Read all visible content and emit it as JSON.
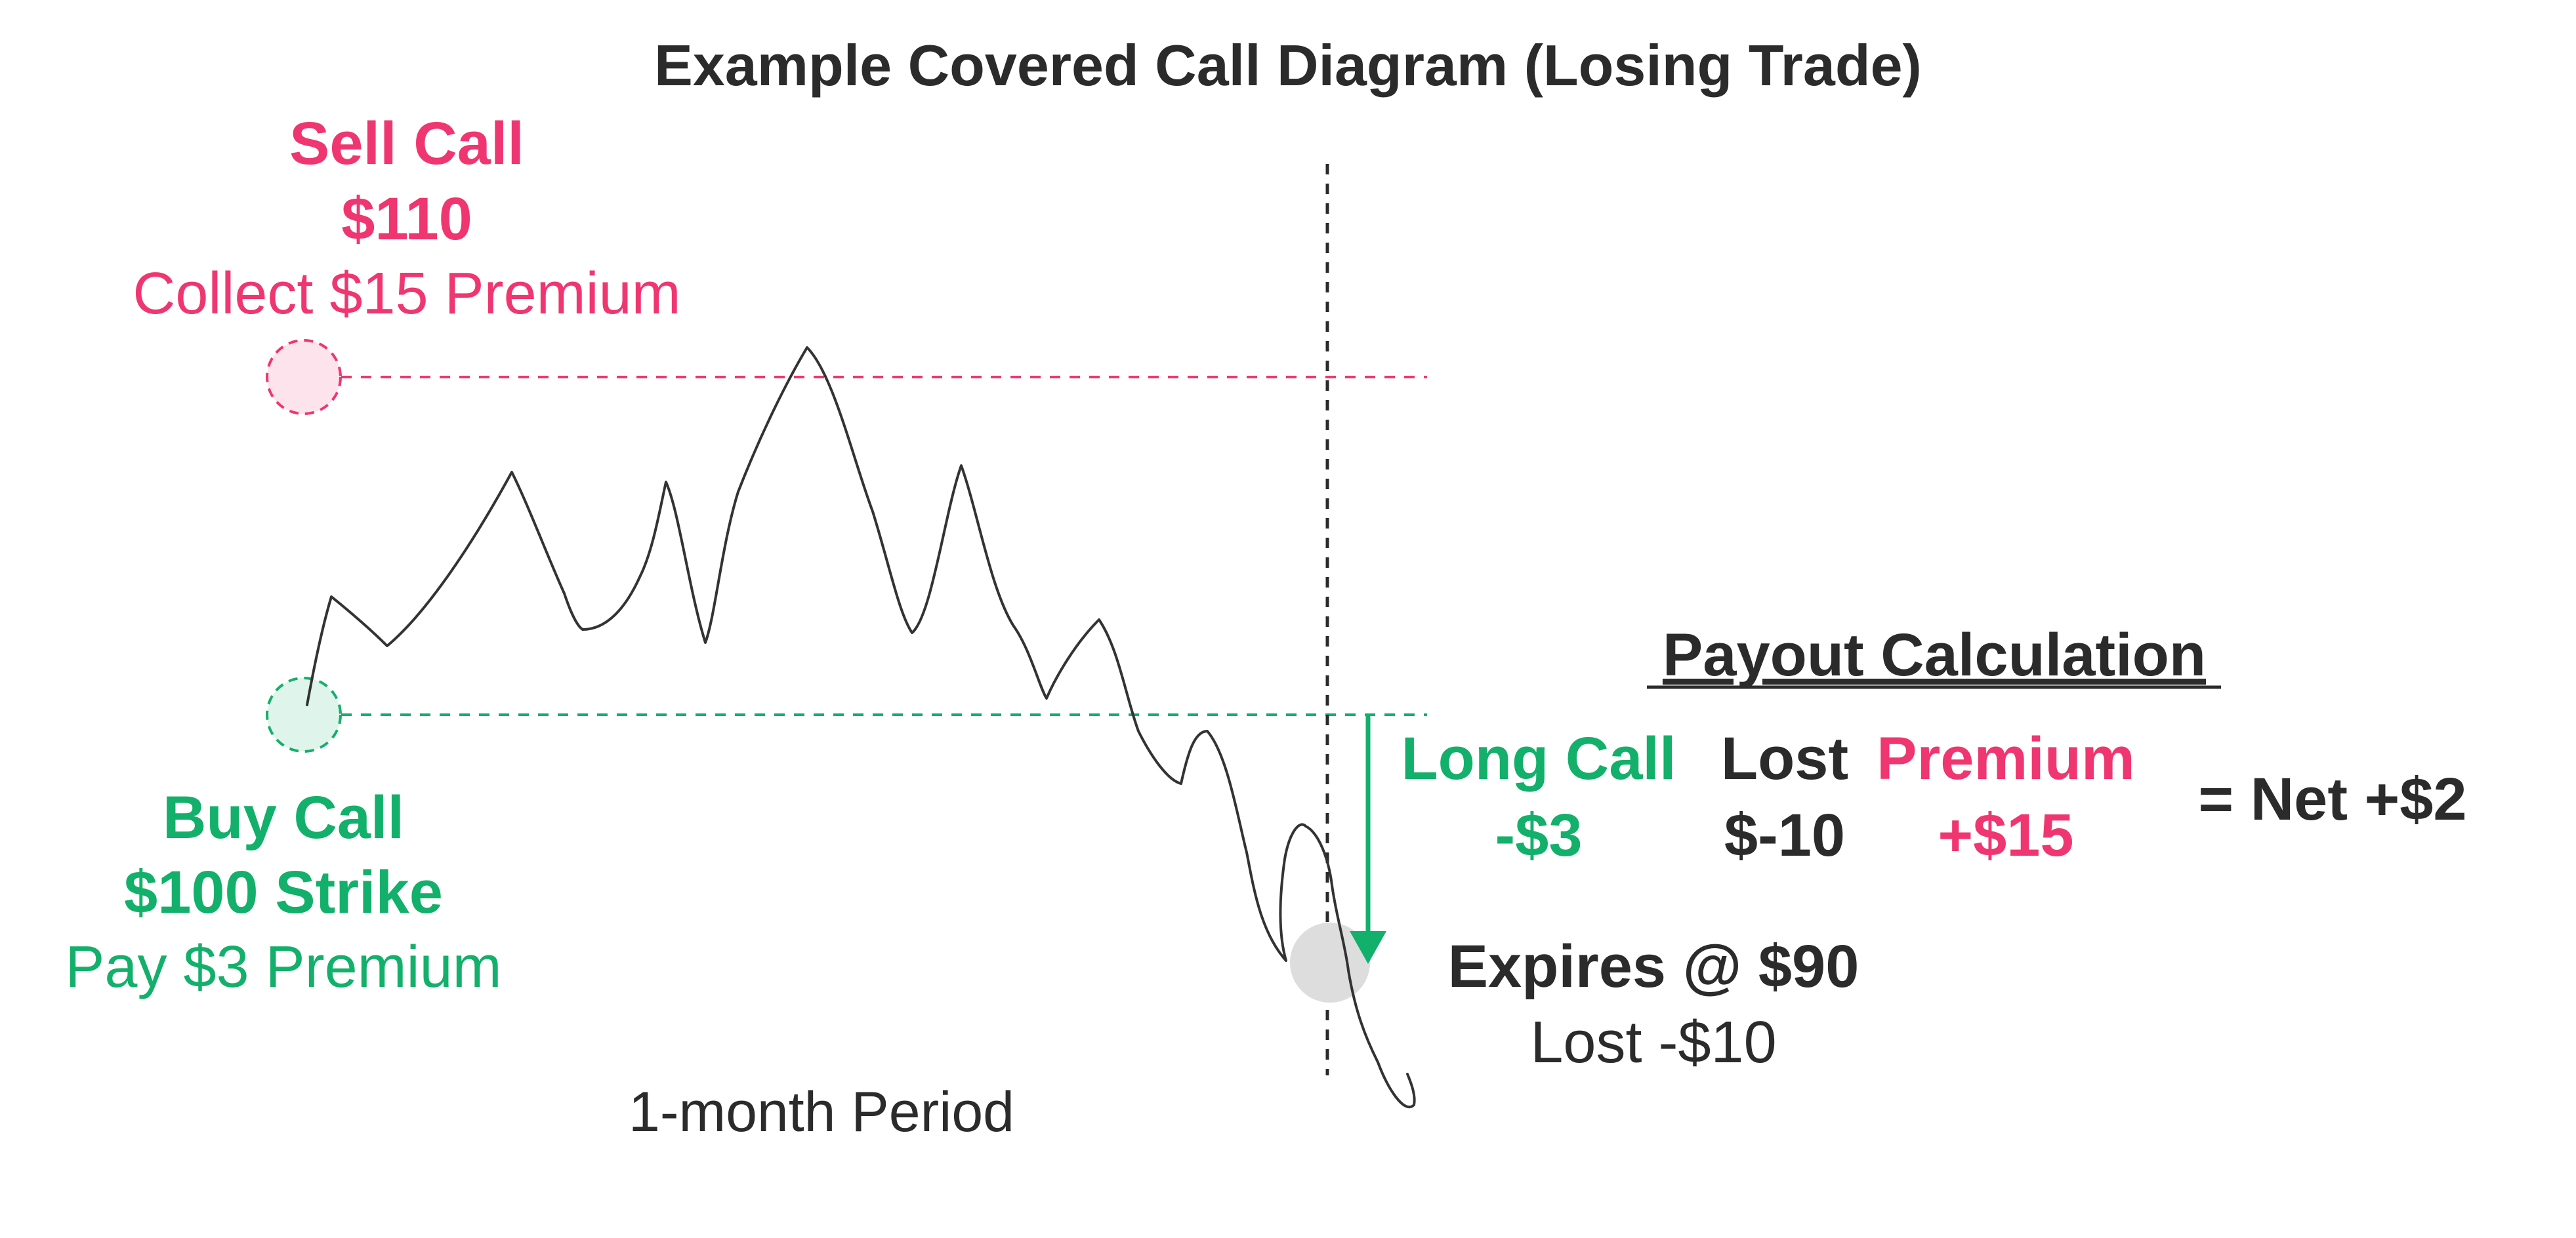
{
  "title": "Example Covered Call Diagram (Losing Trade)",
  "sell_call": {
    "line1": "Sell Call",
    "line2": "$110",
    "line3": "Collect $15 Premium"
  },
  "buy_call": {
    "line1": "Buy Call",
    "line2": "$100 Strike",
    "line3": "Pay $3 Premium"
  },
  "expiry": {
    "line1": "Expires @ $90",
    "line2": "Lost -$10"
  },
  "period_label": "1-month Period",
  "payout": {
    "heading": "Payout Calculation",
    "long_call_label": "Long Call",
    "long_call_value": "-$3",
    "lost_label": "Lost",
    "lost_value": "$-10",
    "premium_label": "Premium",
    "premium_value": "+$15",
    "net": "= Net +$2"
  },
  "colors": {
    "sell": "#ef3670",
    "buy": "#13b06b",
    "text": "#2b2b2b",
    "price_line": "#333333",
    "expiry_marker": "#dddddd"
  }
}
